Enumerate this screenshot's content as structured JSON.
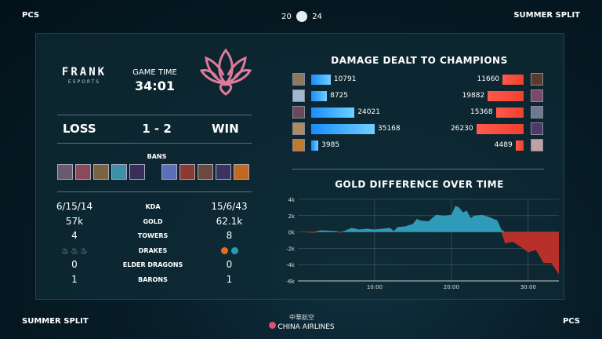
{
  "header": {
    "left": "PCS",
    "year_left": "20",
    "year_right": "24",
    "right": "SUMMER SPLIT"
  },
  "footer": {
    "left": "SUMMER SPLIT",
    "sponsor_cn": "中華航空",
    "sponsor": "CHINA AIRLINES",
    "right": "PCS"
  },
  "teams": {
    "left_logo": "FRANK",
    "left_logo_sub": "ESPORTS",
    "right_logo": "lotus-logo",
    "left_color": "#ffffff",
    "right_color": "#e07a9a"
  },
  "game": {
    "time_label": "GAME TIME",
    "time": "34:01",
    "left_result": "LOSS",
    "score": "1 - 2",
    "right_result": "WIN",
    "bans_label": "BANS"
  },
  "bans": {
    "left": [
      "#6b5a6e",
      "#8a4a5a",
      "#7a6440",
      "#3f8fa8",
      "#3a2f5a"
    ],
    "right": [
      "#5a70b8",
      "#8a3a30",
      "#6a4a40",
      "#3a3560",
      "#c06a20"
    ]
  },
  "stats": [
    {
      "label": "KDA",
      "left": "6/15/14",
      "right": "15/6/43"
    },
    {
      "label": "GOLD",
      "left": "57k",
      "right": "62.1k"
    },
    {
      "label": "TOWERS",
      "left": "4",
      "right": "8"
    },
    {
      "label": "DRAKES",
      "left": "",
      "right": ""
    },
    {
      "label": "ELDER DRAGONS",
      "left": "0",
      "right": "0"
    },
    {
      "label": "BARONS",
      "left": "1",
      "right": "1"
    }
  ],
  "drakes": {
    "left": [
      "cloud-drake",
      "cloud-drake",
      "cloud-drake"
    ],
    "right": [
      "infernal-drake",
      "ocean-drake"
    ]
  },
  "colors": {
    "blue": "#1a8cff",
    "red": "#f04030",
    "gold_pos": "#2f9bb8",
    "gold_neg": "#b8302a"
  },
  "chart_data": [
    {
      "type": "bar",
      "title": "DAMAGE DEALT TO CHAMPIONS",
      "series": [
        {
          "values": [
            10791,
            8725,
            24021,
            35168,
            3985
          ]
        },
        {
          "values": [
            11660,
            19882,
            15368,
            26230,
            4489
          ]
        }
      ],
      "portraits_left": [
        "#8a7a60",
        "#a0b8d0",
        "#6a4a5a",
        "#b08a60",
        "#c07a30"
      ],
      "portraits_right": [
        "#5a3a2a",
        "#7a4a6a",
        "#6a7a90",
        "#4a3a6a",
        "#c0a0a0"
      ]
    },
    {
      "type": "area",
      "title": "GOLD DIFFERENCE OVER TIME",
      "ylim": [
        -6000,
        4000
      ],
      "yticks": [
        "4k",
        "2k",
        "0k",
        "-2k",
        "-4k",
        "-6k"
      ],
      "xlim": [
        0,
        34
      ],
      "xticks": [
        "10:00",
        "20:00",
        "30:00"
      ],
      "grid": true,
      "x": [
        0,
        2,
        3,
        5,
        5.5,
        6,
        7,
        8,
        9,
        10,
        11,
        12,
        12.5,
        13,
        14,
        15,
        15.5,
        16,
        17,
        18,
        19,
        20,
        20.5,
        21,
        21.5,
        22,
        22.5,
        23,
        24,
        25,
        26,
        26.5,
        27,
        28,
        29,
        30,
        31,
        31.5,
        32,
        33,
        33.5,
        34
      ],
      "y": [
        0,
        -100,
        200,
        100,
        -100,
        100,
        500,
        300,
        400,
        300,
        400,
        500,
        100,
        600,
        700,
        1000,
        1600,
        1400,
        1300,
        2100,
        2000,
        2100,
        3200,
        3000,
        2400,
        2600,
        1700,
        2000,
        2100,
        1800,
        1400,
        300,
        -1400,
        -1200,
        -1800,
        -2500,
        -2200,
        -3000,
        -3800,
        -3800,
        -4500,
        -5200
      ]
    }
  ]
}
